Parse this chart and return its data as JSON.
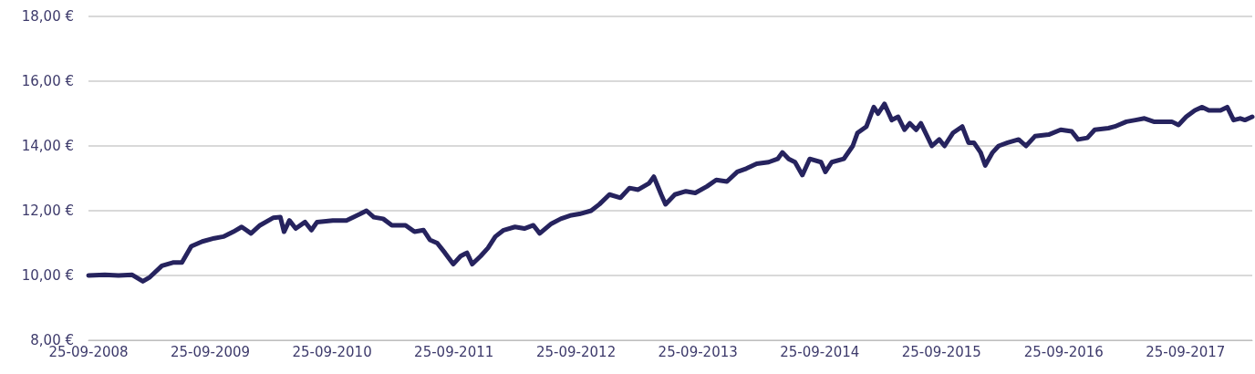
{
  "chart_data": {
    "type": "line",
    "line_style": "solid",
    "marker": "none",
    "grid": "y",
    "xlim": [
      "2008-09-25",
      "2018-04-13"
    ],
    "xticks": [
      {
        "value": "2008-09-25",
        "label": "25-09-2008"
      },
      {
        "value": "2009-09-25",
        "label": "25-09-2009"
      },
      {
        "value": "2010-09-25",
        "label": "25-09-2010"
      },
      {
        "value": "2011-09-25",
        "label": "25-09-2011"
      },
      {
        "value": "2012-09-25",
        "label": "25-09-2012"
      },
      {
        "value": "2013-09-25",
        "label": "25-09-2013"
      },
      {
        "value": "2014-09-25",
        "label": "25-09-2014"
      },
      {
        "value": "2015-09-25",
        "label": "25-09-2015"
      },
      {
        "value": "2016-09-25",
        "label": "25-09-2016"
      },
      {
        "value": "2017-09-25",
        "label": "25-09-2017"
      }
    ],
    "ylim": [
      8,
      18
    ],
    "yticks": [
      {
        "value": 8,
        "label": "8,00 €"
      },
      {
        "value": 10,
        "label": "10,00 €"
      },
      {
        "value": 12,
        "label": "12,00 €"
      },
      {
        "value": 14,
        "label": "14,00 €"
      },
      {
        "value": 16,
        "label": "16,00 €"
      },
      {
        "value": 18,
        "label": "18,00 €"
      }
    ],
    "x": [
      "2008-09-25",
      "2008-11-13",
      "2008-12-24",
      "2009-02-03",
      "2009-03-07",
      "2009-03-28",
      "2009-05-03",
      "2009-06-05",
      "2009-07-02",
      "2009-07-30",
      "2009-09-01",
      "2009-10-07",
      "2009-11-03",
      "2009-12-03",
      "2009-12-28",
      "2010-01-25",
      "2010-02-21",
      "2010-04-01",
      "2010-04-23",
      "2010-05-04",
      "2010-05-20",
      "2010-06-08",
      "2010-07-06",
      "2010-07-25",
      "2010-08-11",
      "2010-09-27",
      "2010-11-07",
      "2010-12-18",
      "2011-01-06",
      "2011-01-28",
      "2011-02-25",
      "2011-03-23",
      "2011-05-03",
      "2011-05-30",
      "2011-06-26",
      "2011-07-15",
      "2011-08-06",
      "2011-08-29",
      "2011-09-23",
      "2011-10-15",
      "2011-11-03",
      "2011-11-19",
      "2011-12-14",
      "2012-01-05",
      "2012-01-27",
      "2012-02-21",
      "2012-03-26",
      "2012-04-23",
      "2012-05-20",
      "2012-06-08",
      "2012-07-13",
      "2012-08-10",
      "2012-09-07",
      "2012-10-05",
      "2012-11-09",
      "2012-12-04",
      "2013-01-03",
      "2013-02-05",
      "2013-03-04",
      "2013-03-30",
      "2013-05-02",
      "2013-05-16",
      "2013-06-07",
      "2013-06-20",
      "2013-07-18",
      "2013-08-20",
      "2013-09-17",
      "2013-10-22",
      "2013-11-19",
      "2013-12-21",
      "2014-01-21",
      "2014-02-17",
      "2014-03-20",
      "2014-04-25",
      "2014-05-22",
      "2014-06-05",
      "2014-06-24",
      "2014-07-13",
      "2014-08-04",
      "2014-08-26",
      "2014-09-29",
      "2014-10-12",
      "2014-10-31",
      "2014-12-06",
      "2015-01-02",
      "2015-01-16",
      "2015-02-12",
      "2015-03-06",
      "2015-03-19",
      "2015-04-07",
      "2015-04-29",
      "2015-05-18",
      "2015-06-06",
      "2015-06-22",
      "2015-07-11",
      "2015-07-25",
      "2015-08-13",
      "2015-08-27",
      "2015-09-18",
      "2015-10-04",
      "2015-10-29",
      "2015-11-26",
      "2015-12-15",
      "2015-12-31",
      "2016-01-20",
      "2016-02-03",
      "2016-02-25",
      "2016-03-14",
      "2016-04-10",
      "2016-05-13",
      "2016-06-04",
      "2016-07-01",
      "2016-08-11",
      "2016-09-16",
      "2016-10-19",
      "2016-11-07",
      "2016-12-05",
      "2016-12-27",
      "2017-02-06",
      "2017-02-25",
      "2017-04-01",
      "2017-04-28",
      "2017-05-25",
      "2017-06-22",
      "2017-08-15",
      "2017-09-04",
      "2017-09-27",
      "2017-10-23",
      "2017-11-14",
      "2017-12-04",
      "2018-01-08",
      "2018-01-28",
      "2018-02-16",
      "2018-03-08",
      "2018-03-22",
      "2018-04-13"
    ],
    "series": [
      {
        "color": "#26235e",
        "values": [
          10.0,
          10.02,
          10.0,
          10.02,
          9.82,
          9.95,
          10.3,
          10.4,
          10.4,
          10.9,
          11.05,
          11.15,
          11.2,
          11.35,
          11.5,
          11.3,
          11.55,
          11.78,
          11.8,
          11.35,
          11.7,
          11.45,
          11.65,
          11.4,
          11.65,
          11.7,
          11.7,
          11.9,
          12.0,
          11.8,
          11.75,
          11.55,
          11.55,
          11.35,
          11.4,
          11.1,
          11.0,
          10.7,
          10.35,
          10.6,
          10.7,
          10.35,
          10.6,
          10.85,
          11.2,
          11.4,
          11.5,
          11.45,
          11.55,
          11.3,
          11.6,
          11.75,
          11.85,
          11.9,
          12.0,
          12.2,
          12.5,
          12.4,
          12.7,
          12.65,
          12.85,
          13.05,
          12.5,
          12.2,
          12.5,
          12.6,
          12.55,
          12.75,
          12.95,
          12.9,
          13.2,
          13.3,
          13.45,
          13.5,
          13.6,
          13.8,
          13.6,
          13.5,
          13.1,
          13.6,
          13.5,
          13.2,
          13.5,
          13.6,
          14.0,
          14.4,
          14.6,
          15.2,
          15.0,
          15.3,
          14.8,
          14.9,
          14.5,
          14.7,
          14.5,
          14.7,
          14.3,
          14.0,
          14.2,
          14.0,
          14.4,
          14.6,
          14.1,
          14.1,
          13.8,
          13.4,
          13.8,
          14.0,
          14.1,
          14.2,
          14.0,
          14.3,
          14.35,
          14.5,
          14.45,
          14.2,
          14.25,
          14.5,
          14.55,
          14.6,
          14.75,
          14.8,
          14.85,
          14.75,
          14.75,
          14.65,
          14.9,
          15.1,
          15.2,
          15.1,
          15.1,
          15.2,
          14.8,
          14.85,
          14.8,
          14.9
        ]
      }
    ]
  }
}
